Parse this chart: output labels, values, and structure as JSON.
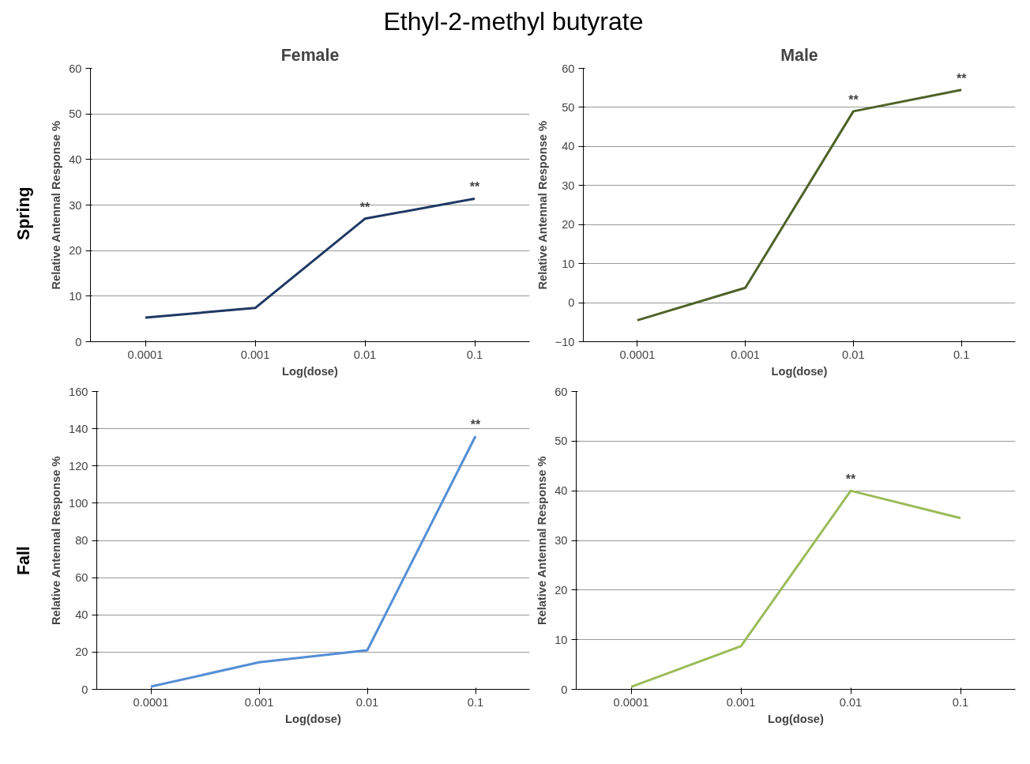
{
  "chart_data": [
    {
      "type": "line",
      "title": "Ethyl-2-methyl butyrate",
      "subtitle": "Female",
      "xlabel": "Log(dose)",
      "ylabel": "Relative Antennal Response %",
      "categories": [
        "0.0001",
        "0.001",
        "0.01",
        "0.1"
      ],
      "series": [
        {
          "color": "#1f3864",
          "values": [
            5.3,
            7.4,
            27,
            31.4
          ]
        }
      ],
      "ylim": [
        0,
        60
      ],
      "yticks": [
        0,
        10,
        20,
        30,
        40,
        50,
        60
      ],
      "grid": "y",
      "annotations": [
        {
          "text": "**",
          "x": "0.01",
          "y": 27
        },
        {
          "text": "**",
          "x": "0.1",
          "y": 31.4
        },
        "Spring"
      ]
    },
    {
      "type": "line",
      "subtitle": "Male",
      "xlabel": "Log(dose)",
      "ylabel": "Relative Antennal Response %",
      "categories": [
        "0.0001",
        "0.001",
        "0.01",
        "0.1"
      ],
      "series": [
        {
          "color": "#4f6228",
          "values": [
            -4.5,
            3.8,
            49,
            54.5
          ]
        }
      ],
      "ylim": [
        -10,
        60
      ],
      "yticks": [
        -10,
        0,
        10,
        20,
        30,
        40,
        50,
        60
      ],
      "grid": "y",
      "annotations": [
        {
          "text": "**",
          "x": "0.01",
          "y": 49
        },
        {
          "text": "**",
          "x": "0.1",
          "y": 54.5
        }
      ]
    },
    {
      "type": "line",
      "xlabel": "Log(dose)",
      "ylabel": "Relative Antennal Response %",
      "categories": [
        "0.0001",
        "0.001",
        "0.01",
        "0.1"
      ],
      "series": [
        {
          "color": "#558ed5",
          "values": [
            1.5,
            14.5,
            21,
            136
          ]
        }
      ],
      "ylim": [
        0,
        160
      ],
      "yticks": [
        0,
        20,
        40,
        60,
        80,
        100,
        120,
        140,
        160
      ],
      "grid": "y",
      "annotations": [
        {
          "text": "**",
          "x": "0.1",
          "y": 136
        },
        "Fall"
      ]
    },
    {
      "type": "line",
      "xlabel": "Log(dose)",
      "ylabel": "Relative Antennal Response %",
      "categories": [
        "0.0001",
        "0.001",
        "0.01",
        "0.1"
      ],
      "series": [
        {
          "color": "#9bbb59",
          "values": [
            0.5,
            8.7,
            40,
            34.5
          ]
        }
      ],
      "ylim": [
        0,
        60
      ],
      "yticks": [
        0,
        10,
        20,
        30,
        40,
        50,
        60
      ],
      "grid": "y",
      "annotations": [
        {
          "text": "**",
          "x": "0.01",
          "y": 40
        }
      ]
    }
  ]
}
